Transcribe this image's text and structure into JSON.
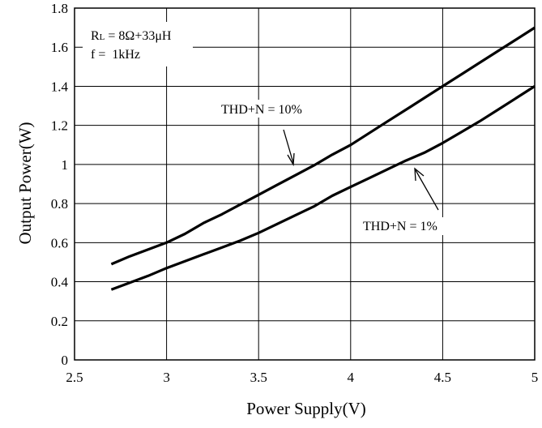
{
  "chart_data": {
    "type": "line",
    "title": "",
    "xlabel": "Power Supply(V)",
    "ylabel": "Output Power(W)",
    "xlim": [
      2.5,
      5
    ],
    "ylim": [
      0,
      1.8
    ],
    "xticks": [
      2.5,
      3,
      3.5,
      4,
      4.5,
      5
    ],
    "xtick_labels": [
      "2.5",
      "3",
      "3.5",
      "4",
      "4.5",
      "5"
    ],
    "yticks": [
      0,
      0.2,
      0.4,
      0.6,
      0.8,
      1,
      1.2,
      1.4,
      1.6,
      1.8
    ],
    "ytick_labels": [
      "0",
      "0.2",
      "0.4",
      "0.6",
      "0.8",
      "1",
      "1.2",
      "1.4",
      "1.6",
      "1.8"
    ],
    "grid": true,
    "series": [
      {
        "name": "THD+N = 10%",
        "x": [
          2.7,
          2.8,
          2.9,
          3.0,
          3.1,
          3.2,
          3.3,
          3.4,
          3.5,
          3.6,
          3.7,
          3.8,
          3.9,
          4.0,
          4.1,
          4.2,
          4.3,
          4.4,
          4.5,
          4.6,
          4.7,
          4.8,
          4.9,
          5.0
        ],
        "y": [
          0.49,
          0.53,
          0.565,
          0.6,
          0.645,
          0.7,
          0.745,
          0.795,
          0.845,
          0.895,
          0.945,
          0.995,
          1.05,
          1.1,
          1.16,
          1.22,
          1.28,
          1.34,
          1.4,
          1.46,
          1.52,
          1.58,
          1.64,
          1.7
        ]
      },
      {
        "name": "THD+N = 1%",
        "x": [
          2.7,
          2.8,
          2.9,
          3.0,
          3.1,
          3.2,
          3.3,
          3.4,
          3.5,
          3.6,
          3.7,
          3.8,
          3.9,
          4.0,
          4.1,
          4.2,
          4.3,
          4.4,
          4.5,
          4.6,
          4.7,
          4.8,
          4.9,
          5.0
        ],
        "y": [
          0.36,
          0.395,
          0.43,
          0.47,
          0.505,
          0.54,
          0.575,
          0.61,
          0.65,
          0.695,
          0.74,
          0.785,
          0.84,
          0.885,
          0.93,
          0.975,
          1.02,
          1.06,
          1.11,
          1.165,
          1.22,
          1.28,
          1.34,
          1.4
        ]
      }
    ],
    "conditions": [
      "RL = 8Ω+33μH",
      "f =  1kHz"
    ],
    "annotations": [
      {
        "text": "THD+N = 10%",
        "points_to": "THD+N = 10%"
      },
      {
        "text": "THD+N = 1%",
        "points_to": "THD+N = 1%"
      }
    ]
  }
}
